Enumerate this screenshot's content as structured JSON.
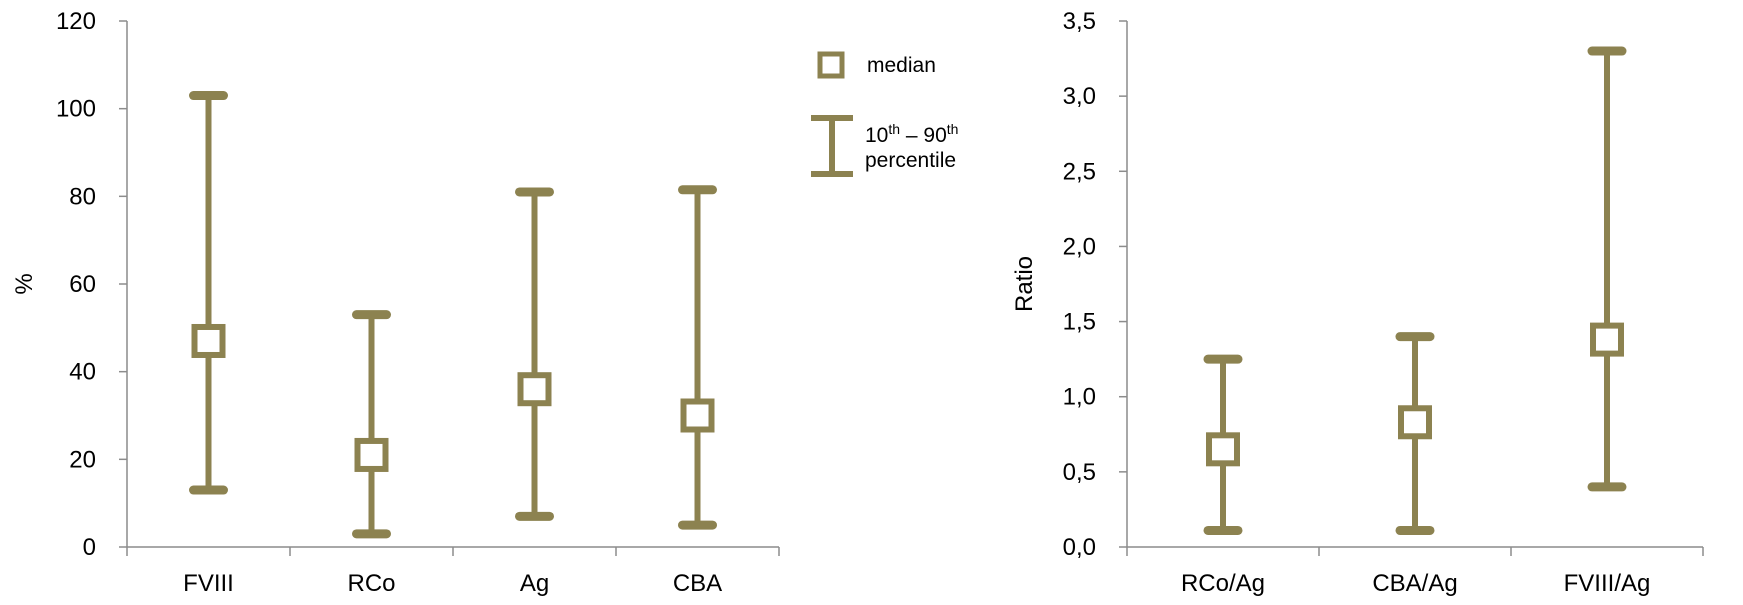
{
  "chart_data": [
    {
      "type": "error-bar",
      "title": "",
      "xlabel": "",
      "ylabel": "%",
      "ylim": [
        0,
        120
      ],
      "yticks": [
        "0",
        "20",
        "40",
        "60",
        "80",
        "100",
        "120"
      ],
      "categories": [
        "FVIII",
        "RCo",
        "Ag",
        "CBA"
      ],
      "series": [
        {
          "name": "median",
          "values": [
            47,
            21,
            36,
            30
          ]
        },
        {
          "name": "10th – 90th percentile low",
          "values": [
            13,
            3,
            7,
            5
          ]
        },
        {
          "name": "10th – 90th percentile high",
          "values": [
            103,
            53,
            81,
            81.5
          ]
        }
      ],
      "color": "#8c8250"
    },
    {
      "type": "error-bar",
      "title": "",
      "xlabel": "",
      "ylabel": "Ratio",
      "ylim": [
        0,
        3.5
      ],
      "yticks": [
        "0,0",
        "0,5",
        "1,0",
        "1,5",
        "2,0",
        "2,5",
        "3,0",
        "3,5"
      ],
      "categories": [
        "RCo/Ag",
        "CBA/Ag",
        "FVIII/Ag"
      ],
      "series": [
        {
          "name": "median",
          "values": [
            0.65,
            0.83,
            1.38
          ]
        },
        {
          "name": "10th – 90th percentile low",
          "values": [
            0.11,
            0.11,
            0.4
          ]
        },
        {
          "name": "10th – 90th percentile high",
          "values": [
            1.25,
            1.4,
            3.3
          ]
        }
      ],
      "color": "#8c8250"
    }
  ],
  "legend": {
    "median_label": "median",
    "range_label_num1": "10",
    "range_label_sup1": "th",
    "range_label_mid": " – 90",
    "range_label_sup2": "th",
    "range_label_line2": "percentile"
  }
}
